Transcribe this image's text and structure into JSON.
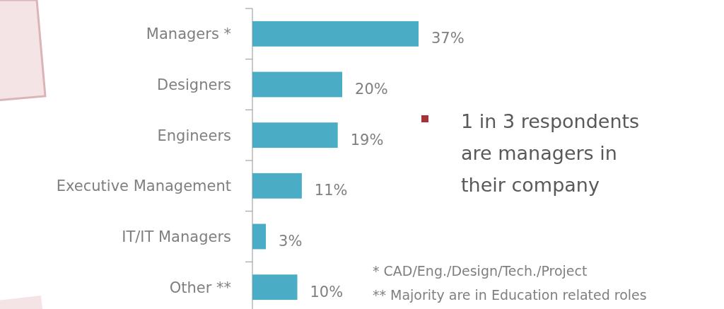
{
  "chart_data": {
    "type": "bar",
    "orientation": "horizontal",
    "categories": [
      "Managers *",
      "Designers",
      "Engineers",
      "Executive Management",
      "IT/IT Managers",
      "Other **"
    ],
    "values": [
      37,
      20,
      19,
      11,
      3,
      10
    ],
    "value_labels": [
      "37%",
      "20%",
      "19%",
      "11%",
      "3%",
      "10%"
    ],
    "color": "#4bacc6",
    "annotations": [
      "1 in 3 respondents are managers in their company",
      "* CAD/Eng./Design/Tech./Project",
      "** Majority are in Education related roles"
    ]
  }
}
